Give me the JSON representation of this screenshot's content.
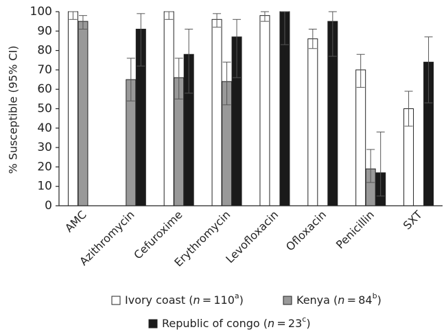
{
  "chart_data": {
    "type": "bar",
    "ylabel": "% Susceptible (95% CI)",
    "xlabel": "",
    "ylim": [
      0,
      100
    ],
    "yticks": [
      0,
      10,
      20,
      30,
      40,
      50,
      60,
      70,
      80,
      90,
      100
    ],
    "grid": false,
    "legend_position": "bottom",
    "categories": [
      "AMC",
      "Azithromycin",
      "Cefuroxime",
      "Erythromycin",
      "Levofloxacin",
      "Ofloxacin",
      "Penicillin",
      "SXT"
    ],
    "series": [
      {
        "name": "Ivory coast",
        "legend_n": "110",
        "legend_sup": "a",
        "color": "#ffffff",
        "values": [
          100,
          null,
          100,
          96,
          98,
          86,
          70,
          50
        ],
        "ci_low": [
          96,
          null,
          96,
          92,
          95,
          81,
          61,
          41
        ],
        "ci_high": [
          100,
          null,
          100,
          99,
          100,
          91,
          78,
          59
        ]
      },
      {
        "name": "Kenya",
        "legend_n": "84",
        "legend_sup": "b",
        "color": "#999999",
        "values": [
          95,
          65,
          66,
          64,
          null,
          null,
          19,
          null
        ],
        "ci_low": [
          91,
          54,
          55,
          52,
          null,
          null,
          12,
          null
        ],
        "ci_high": [
          98,
          76,
          76,
          74,
          null,
          null,
          29,
          null
        ]
      },
      {
        "name": "Republic of congo",
        "legend_n": "23",
        "legend_sup": "c",
        "color": "#1a1a1a",
        "values": [
          null,
          91,
          78,
          87,
          100,
          95,
          17,
          74
        ],
        "ci_low": [
          null,
          72,
          58,
          66,
          83,
          77,
          5,
          53
        ],
        "ci_high": [
          null,
          99,
          91,
          96,
          100,
          100,
          38,
          87
        ]
      }
    ]
  }
}
